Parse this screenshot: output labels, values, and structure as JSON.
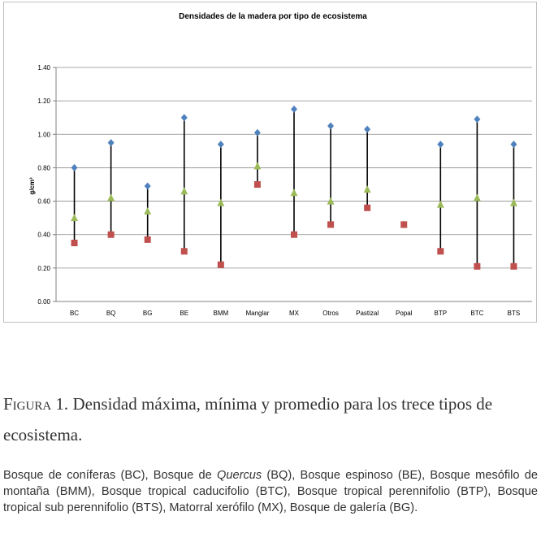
{
  "chart_data": {
    "type": "scatter",
    "title": "Densidades de la madera por tipo de ecosistema",
    "ylabel": "g/cm³",
    "xlabel": "",
    "ylim": [
      0,
      1.4
    ],
    "yticks": [
      "0.00",
      "0.20",
      "0.40",
      "0.60",
      "0.80",
      "1.00",
      "1.20",
      "1.40"
    ],
    "ytick_values": [
      0,
      0.2,
      0.4,
      0.6,
      0.8,
      1.0,
      1.2,
      1.4
    ],
    "categories": [
      "BC",
      "BQ",
      "BG",
      "BE",
      "BMM",
      "Manglar",
      "MX",
      "Otros",
      "Pastizal",
      "Popal",
      "BTP",
      "BTC",
      "BTS"
    ],
    "series": [
      {
        "name": "Máxima",
        "marker": "diamond",
        "color": "#4f81bd",
        "values": [
          0.8,
          0.95,
          0.69,
          1.1,
          0.94,
          1.01,
          1.15,
          1.05,
          1.03,
          0.46,
          0.94,
          1.09,
          0.94
        ]
      },
      {
        "name": "Promedio",
        "marker": "triangle",
        "color": "#9bbb59",
        "values": [
          0.5,
          0.62,
          0.54,
          0.66,
          0.59,
          0.81,
          0.65,
          0.6,
          0.67,
          0.46,
          0.58,
          0.62,
          0.59
        ]
      },
      {
        "name": "Mínima",
        "marker": "square",
        "color": "#c0504d",
        "values": [
          0.35,
          0.4,
          0.37,
          0.3,
          0.22,
          0.7,
          0.4,
          0.46,
          0.56,
          0.46,
          0.3,
          0.21,
          0.21
        ]
      }
    ],
    "range_line_color": "#000000",
    "gridlines": "horizontal"
  },
  "caption": {
    "figure_label": "Figura 1.",
    "text": "Densidad máxima, mínima y promedio para los trece tipos de ecosistema."
  },
  "legend_text": {
    "part1": "Bosque de coníferas (BC), Bosque de ",
    "italic": "Quercus",
    "part2": " (BQ), Bosque espinoso (BE), Bosque mesófilo de montaña (BMM), Bosque tropical caducifolio (BTC), Bosque tropical perennifolio (BTP), Bosque tropical sub perennifolio (BTS), Matorral xerófilo (MX), Bosque de galería (BG)."
  }
}
